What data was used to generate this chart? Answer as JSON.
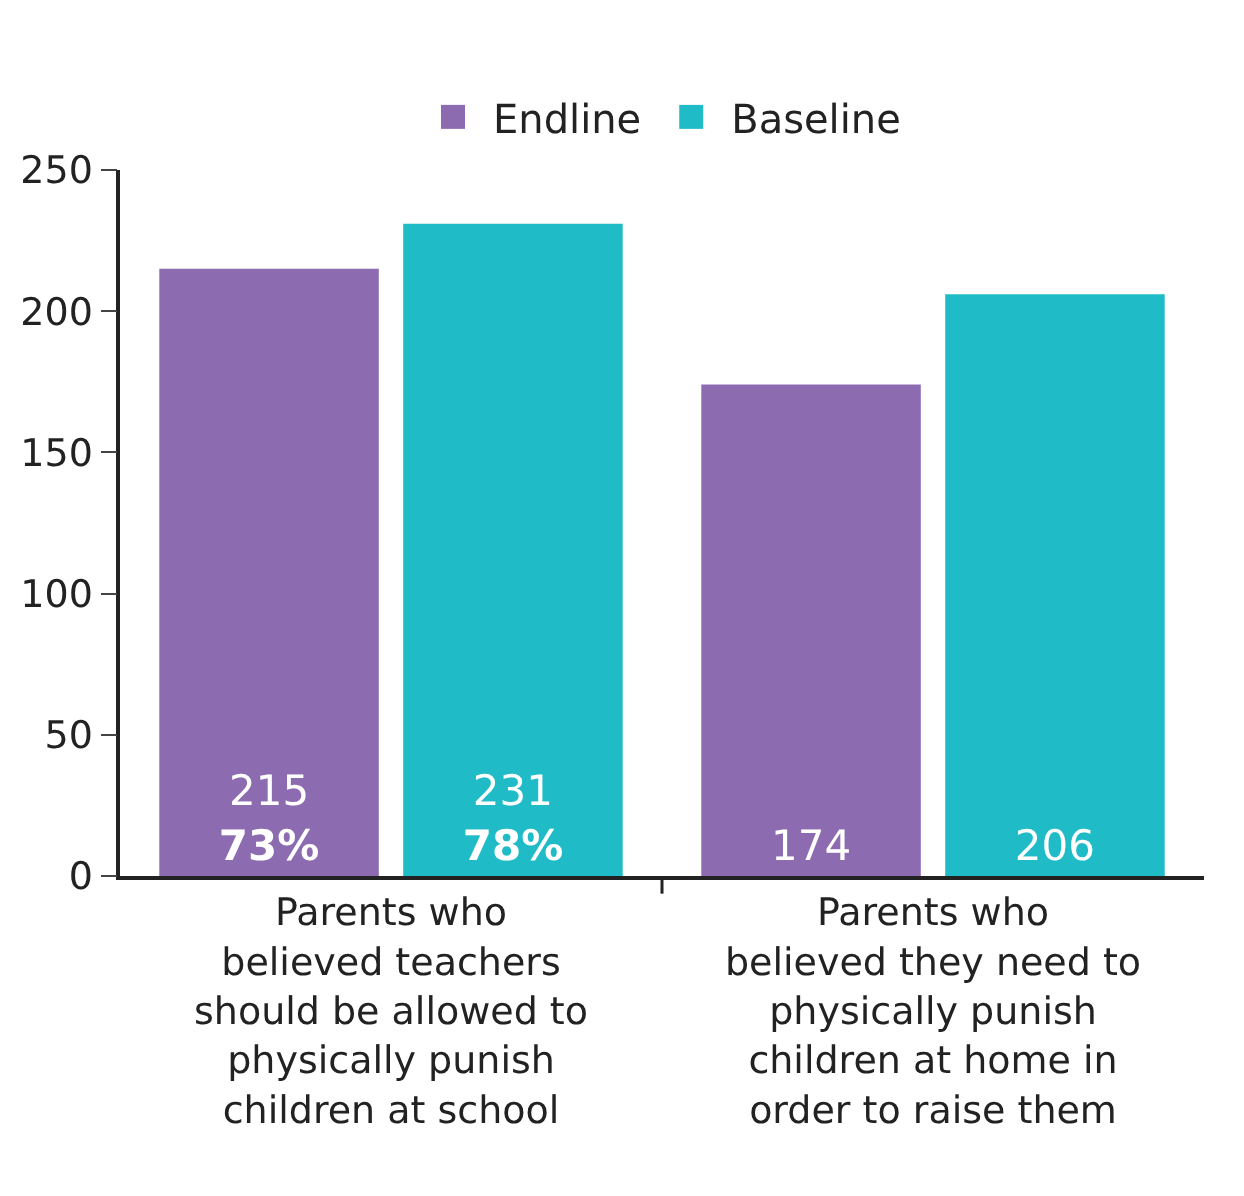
{
  "chart_data": {
    "type": "bar",
    "categories": [
      "Parents who\nbelieved teachers\nshould be allowed to\nphysically punish\nchildren at school",
      "Parents who\nbelieved they need to\nphysically punish\nchildren at home in\norder to raise them"
    ],
    "series": [
      {
        "name": "Endline",
        "color": "#8c6bb0",
        "values": [
          215,
          174
        ],
        "value_labels": [
          "215\n73%",
          "174"
        ]
      },
      {
        "name": "Baseline",
        "color": "#1fbcc7",
        "values": [
          231,
          206
        ],
        "value_labels": [
          "231\n78%",
          "206"
        ]
      }
    ],
    "ylim": [
      0,
      250
    ],
    "yticks": [
      0,
      50,
      100,
      150,
      200,
      250
    ],
    "grid": false,
    "legend": "top"
  }
}
